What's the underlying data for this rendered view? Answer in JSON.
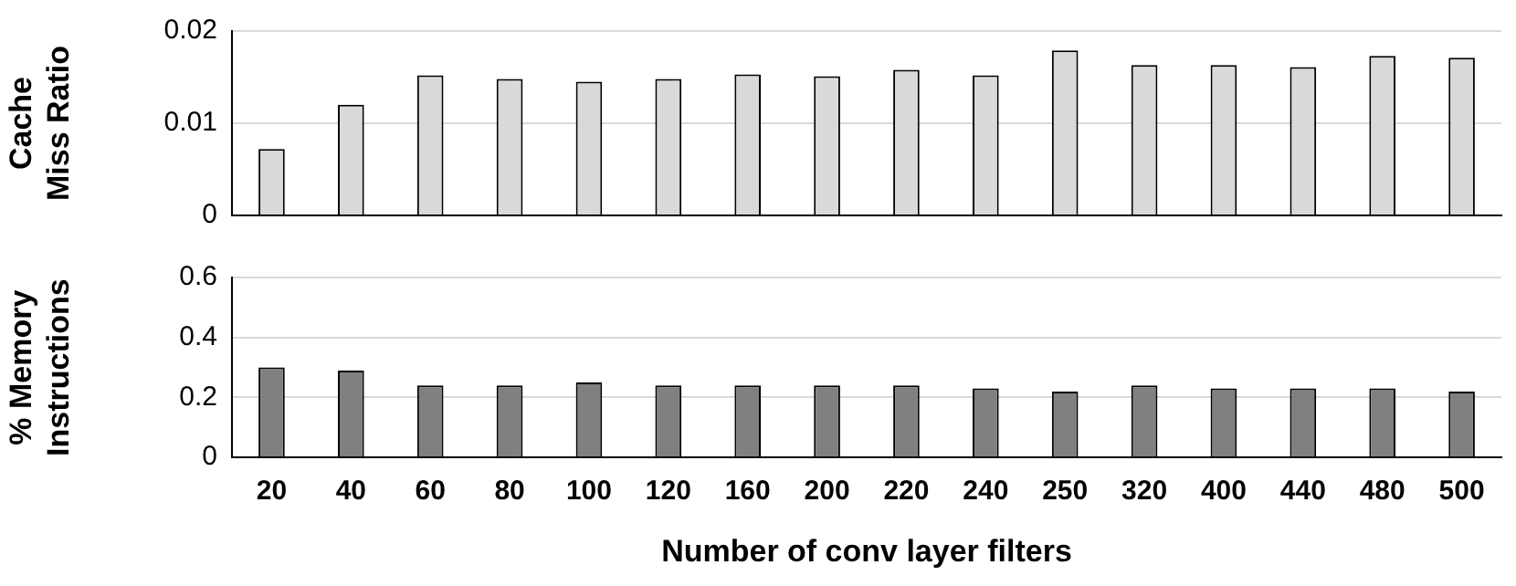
{
  "chart_data": [
    {
      "type": "bar",
      "ylabel": "Cache Miss Ratio",
      "categories": [
        "20",
        "40",
        "60",
        "80",
        "100",
        "120",
        "160",
        "200",
        "220",
        "240",
        "250",
        "320",
        "400",
        "440",
        "480",
        "500"
      ],
      "series": [
        {
          "color": "#d9d9d9",
          "values": [
            0.0072,
            0.012,
            0.0152,
            0.0148,
            0.0145,
            0.0148,
            0.0153,
            0.0151,
            0.0158,
            0.0152,
            0.0179,
            0.0163,
            0.0163,
            0.0161,
            0.0173,
            0.0171
          ]
        }
      ],
      "ylim": [
        0,
        0.02
      ],
      "yticks": [
        0,
        0.01,
        0.02
      ],
      "grid": "y",
      "tick_labels": "y"
    },
    {
      "type": "bar",
      "ylabel": "% Memory Instructions",
      "xlabel": "Number of conv layer filters",
      "categories": [
        "20",
        "40",
        "60",
        "80",
        "100",
        "120",
        "160",
        "200",
        "220",
        "240",
        "250",
        "320",
        "400",
        "440",
        "480",
        "500"
      ],
      "series": [
        {
          "color": "#808080",
          "values": [
            0.3,
            0.29,
            0.24,
            0.24,
            0.25,
            0.24,
            0.24,
            0.24,
            0.24,
            0.23,
            0.22,
            0.24,
            0.23,
            0.23,
            0.23,
            0.22
          ]
        }
      ],
      "ylim": [
        0,
        0.6
      ],
      "yticks": [
        0,
        0.2,
        0.4,
        0.6
      ],
      "grid": "y"
    }
  ]
}
